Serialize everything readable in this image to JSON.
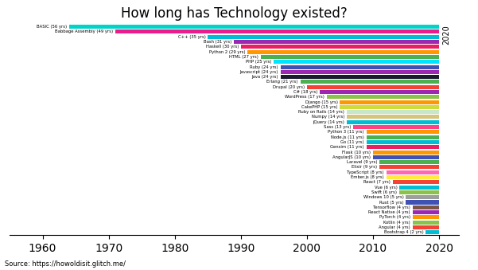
{
  "chart_data": {
    "type": "bar",
    "orientation": "horizontal",
    "title": "How long has Technology existed?",
    "source": "Source: https://howoldisit.glitch.me/",
    "annotation": "2020",
    "categories": [
      "BASIC (56 yrs)",
      "Babbage Assembly (49 yrs)",
      "C++ (35 yrs)",
      "Bash (31 yrs)",
      "Haskell (30 yrs)",
      "Python 2 (29 yrs)",
      "HTML (27 yrs)",
      "PHP (25 yrs)",
      "Ruby (24 yrs)",
      "Javascript (24 yrs)",
      "Java (24 yrs)",
      "Erlang (21 yrs)",
      "Drupal (20 yrs)",
      "C# (18 yrs)",
      "WordPress (17 yrs)",
      "Django (15 yrs)",
      "CakePHP (15 yrs)",
      "Ruby on Rails (14 yrs)",
      "Numpy (14 yrs)",
      "jQuery (14 yrs)",
      "Sass (13 yrs)",
      "Python 3 (11 yrs)",
      "Node.js (11 yrs)",
      "Go (11 yrs)",
      "Gensim (11 yrs)",
      "Flask (10 yrs)",
      "AngularJS (10 yrs)",
      "Laravel (9 yrs)",
      "Elixir (9 yrs)",
      "TypeScript (8 yrs)",
      "Ember.js (8 yrs)",
      "React (7 yrs)",
      "Vue (6 yrs)",
      "Swift (6 yrs)",
      "Windows 10 (5 yrs)",
      "Rust (5 yrs)",
      "Tensorflow (4 yrs)",
      "React Native (4 yrs)",
      "PyTorch (4 yrs)",
      "Kotlin (4 yrs)",
      "Angular (4 yrs)",
      "Bootstrap 4 (2 yrs)"
    ],
    "starts": [
      1964,
      1971,
      1985,
      1989,
      1990,
      1991,
      1993,
      1995,
      1996,
      1996,
      1996,
      1999,
      2000,
      2002,
      2003,
      2005,
      2005,
      2006,
      2006,
      2006,
      2007,
      2009,
      2009,
      2009,
      2009,
      2010,
      2010,
      2011,
      2011,
      2012,
      2012,
      2013,
      2014,
      2014,
      2015,
      2015,
      2016,
      2016,
      2016,
      2016,
      2016,
      2018
    ],
    "ends": [
      2020,
      2020,
      2020,
      2020,
      2020,
      2020,
      2020,
      2020,
      2020,
      2020,
      2020,
      2020,
      2020,
      2020,
      2020,
      2020,
      2020,
      2020,
      2020,
      2020,
      2020,
      2020,
      2020,
      2020,
      2020,
      2020,
      2020,
      2020,
      2020,
      2020,
      2020,
      2020,
      2020,
      2020,
      2020,
      2020,
      2020,
      2020,
      2020,
      2020,
      2020,
      2020
    ],
    "colors": [
      "#00d4c8",
      "#e91e8c",
      "#00bcd4",
      "#9c27b0",
      "#e91e63",
      "#ff9800",
      "#4caf50",
      "#00e5ff",
      "#3f51b5",
      "#9c27b0",
      "#1a1a2e",
      "#4caf50",
      "#f44336",
      "#9c27b0",
      "#8bc34a",
      "#ff9800",
      "#cddc39",
      "#c8e6c9",
      "#d4c57a",
      "#00bcd4",
      "#ff4081",
      "#ff9800",
      "#4caf50",
      "#00bcd4",
      "#e91e63",
      "#ff9800",
      "#3f51b5",
      "#4caf50",
      "#f44336",
      "#ff69b4",
      "#ffeb3b",
      "#f44336",
      "#00bcd4",
      "#8bc34a",
      "#9e9e9e",
      "#3f51b5",
      "#795548",
      "#9c27b0",
      "#ff9800",
      "#8bc34a",
      "#f44336",
      "#00bcd4"
    ],
    "xlim": [
      1955,
      2023
    ],
    "xticks": [
      1960,
      1970,
      1980,
      1990,
      2000,
      2010,
      2020
    ],
    "tick_labels": "x",
    "grid": false
  }
}
